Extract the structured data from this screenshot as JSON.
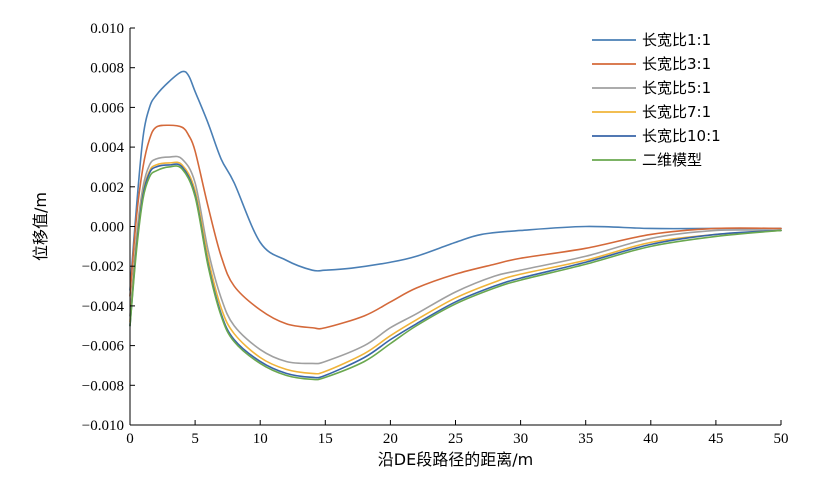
{
  "chart_data": {
    "type": "line",
    "title": "",
    "xlabel": "沿DE段路径的距离/m",
    "ylabel": "位移值/m",
    "xlim": [
      0,
      50
    ],
    "ylim": [
      -0.01,
      0.01
    ],
    "x_ticks": [
      0,
      5,
      10,
      15,
      20,
      25,
      30,
      35,
      40,
      45,
      50
    ],
    "x_tick_labels": [
      "0",
      "5",
      "10",
      "15",
      "20",
      "25",
      "30",
      "35",
      "40",
      "45",
      "50"
    ],
    "y_ticks": [
      -0.01,
      -0.008,
      -0.006,
      -0.004,
      -0.002,
      0.0,
      0.002,
      0.004,
      0.006,
      0.008,
      0.01
    ],
    "y_tick_labels": [
      "−0.010",
      "−0.008",
      "−0.006",
      "−0.004",
      "−0.002",
      "0.000",
      "0.002",
      "0.004",
      "0.006",
      "0.008",
      "0.010"
    ],
    "grid": false,
    "legend_position": "top-right",
    "series": [
      {
        "name": "长宽比1:1",
        "color": "#4a7fb5",
        "x": [
          0,
          0.5,
          1,
          1.5,
          2,
          3,
          4,
          4.5,
          5,
          6,
          7,
          8,
          10,
          12,
          14,
          15,
          17,
          20,
          22,
          25,
          27,
          30,
          35,
          40,
          45,
          50
        ],
        "y": [
          -0.0032,
          0.001,
          0.0045,
          0.006,
          0.0066,
          0.0073,
          0.0078,
          0.0076,
          0.0068,
          0.0052,
          0.0034,
          0.0022,
          -0.0008,
          -0.0017,
          -0.0022,
          -0.0022,
          -0.0021,
          -0.0018,
          -0.0015,
          -0.0008,
          -0.0004,
          -0.0002,
          0.0,
          -0.0001,
          -0.0001,
          -0.0001
        ]
      },
      {
        "name": "长宽比3:1",
        "color": "#d4693a",
        "x": [
          0,
          0.5,
          1,
          1.5,
          2,
          3,
          4,
          4.5,
          5,
          6,
          7,
          8,
          10,
          12,
          14,
          15,
          18,
          20,
          22,
          25,
          28,
          30,
          35,
          40,
          45,
          50
        ],
        "y": [
          -0.0035,
          0.0005,
          0.003,
          0.0044,
          0.005,
          0.0051,
          0.005,
          0.0046,
          0.0038,
          0.001,
          -0.0015,
          -0.003,
          -0.0042,
          -0.0049,
          -0.0051,
          -0.0051,
          -0.0045,
          -0.0038,
          -0.0031,
          -0.0024,
          -0.0019,
          -0.0016,
          -0.0011,
          -0.0004,
          -0.0001,
          -0.0001
        ]
      },
      {
        "name": "长宽比5:1",
        "color": "#a0a0a0",
        "x": [
          0,
          0.5,
          1,
          1.5,
          2,
          3,
          4,
          5,
          6,
          7,
          8,
          10,
          12,
          14,
          15,
          18,
          20,
          22,
          25,
          28,
          30,
          35,
          40,
          45,
          50
        ],
        "y": [
          -0.0045,
          -0.0005,
          0.002,
          0.0031,
          0.0034,
          0.0035,
          0.0034,
          0.0022,
          -0.0012,
          -0.0036,
          -0.005,
          -0.0062,
          -0.0068,
          -0.0069,
          -0.0068,
          -0.006,
          -0.0051,
          -0.0044,
          -0.0033,
          -0.0025,
          -0.0022,
          -0.0015,
          -0.0006,
          -0.0002,
          -0.0002
        ]
      },
      {
        "name": "长宽比7:1",
        "color": "#f0b43a",
        "x": [
          0,
          0.5,
          1,
          1.5,
          2,
          3,
          4,
          5,
          6,
          7,
          8,
          10,
          12,
          14,
          15,
          18,
          20,
          22,
          25,
          28,
          30,
          35,
          40,
          45,
          50
        ],
        "y": [
          -0.0048,
          -0.0008,
          0.0017,
          0.0028,
          0.0031,
          0.0032,
          0.0031,
          0.0018,
          -0.0016,
          -0.0041,
          -0.0054,
          -0.0066,
          -0.0072,
          -0.0074,
          -0.0073,
          -0.0064,
          -0.0055,
          -0.0047,
          -0.0036,
          -0.0028,
          -0.0024,
          -0.0017,
          -0.0008,
          -0.0004,
          -0.0002
        ]
      },
      {
        "name": "长宽比10:1",
        "color": "#3864a8",
        "x": [
          0,
          0.5,
          1,
          1.5,
          2,
          3,
          4,
          5,
          6,
          7,
          8,
          10,
          12,
          14,
          15,
          18,
          20,
          22,
          25,
          28,
          30,
          35,
          40,
          45,
          50
        ],
        "y": [
          -0.005,
          -0.001,
          0.0016,
          0.0027,
          0.003,
          0.0031,
          0.003,
          0.0016,
          -0.0019,
          -0.0044,
          -0.0057,
          -0.0068,
          -0.0074,
          -0.0076,
          -0.0075,
          -0.0066,
          -0.0057,
          -0.0049,
          -0.0038,
          -0.003,
          -0.0026,
          -0.0018,
          -0.0009,
          -0.0004,
          -0.0002
        ]
      },
      {
        "name": "二维模型",
        "color": "#6aa84f",
        "x": [
          0,
          0.5,
          1,
          1.5,
          2,
          3,
          4,
          5,
          6,
          7,
          8,
          10,
          12,
          14,
          15,
          18,
          20,
          22,
          25,
          28,
          30,
          35,
          40,
          45,
          50
        ],
        "y": [
          -0.005,
          -0.0012,
          0.0014,
          0.0025,
          0.0028,
          0.003,
          0.0029,
          0.0015,
          -0.002,
          -0.0045,
          -0.0058,
          -0.0069,
          -0.0075,
          -0.0077,
          -0.0076,
          -0.0068,
          -0.0059,
          -0.005,
          -0.0039,
          -0.0031,
          -0.0027,
          -0.0019,
          -0.001,
          -0.0005,
          -0.0002
        ]
      }
    ]
  }
}
